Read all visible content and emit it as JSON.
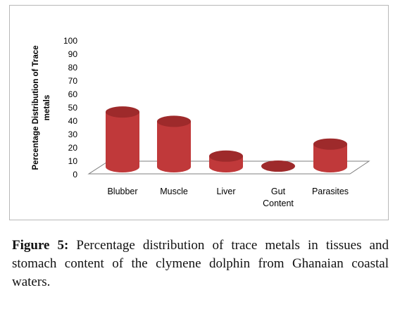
{
  "chart_data": {
    "type": "bar",
    "style": "3d-cylinder",
    "ylabel_lines": [
      "Percentage Distribution of Trace",
      "metals"
    ],
    "categories": [
      [
        "Blubber"
      ],
      [
        "Muscle"
      ],
      [
        "Liver"
      ],
      [
        "Gut",
        "Content"
      ],
      [
        "Parasites"
      ]
    ],
    "values": [
      41,
      34,
      8,
      0.5,
      17
    ],
    "ylim": [
      0,
      100
    ],
    "yticks": [
      0,
      10,
      20,
      30,
      40,
      50,
      60,
      70,
      80,
      90,
      100
    ],
    "bar_color": "#c0393a",
    "bar_top_color": "#9e2a2b",
    "grid": false,
    "legend": "none"
  },
  "caption": {
    "label": "Figure 5:",
    "text": "Percentage distribution of trace metals in tissues and stomach content of the clymene dolphin from Ghanaian coastal waters."
  }
}
